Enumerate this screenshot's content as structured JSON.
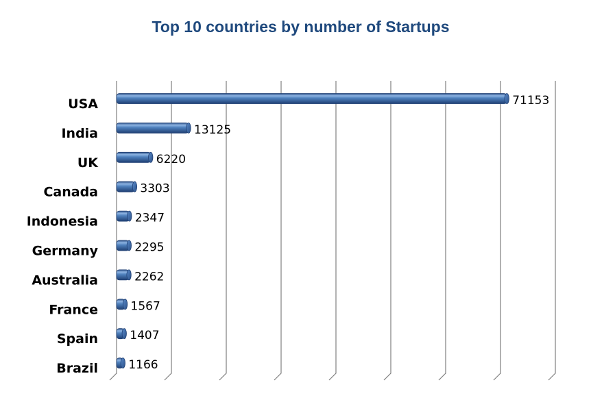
{
  "chart_data": {
    "type": "bar",
    "orientation": "horizontal",
    "style": "3d-cylinder",
    "title": "Top 10 countries by number of Startups",
    "xlabel": "",
    "ylabel": "",
    "categories": [
      "USA",
      "India",
      "UK",
      "Canada",
      "Indonesia",
      "Germany",
      "Australia",
      "France",
      "Spain",
      "Brazil"
    ],
    "values": [
      71153,
      13125,
      6220,
      3303,
      2347,
      2295,
      2262,
      1567,
      1407,
      1166
    ],
    "data_labels": [
      "71153",
      "13125",
      "6220",
      "3303",
      "2347",
      "2295",
      "2262",
      "1567",
      "1407",
      "1166"
    ],
    "xlim": [
      0,
      80000
    ],
    "x_gridlines": [
      0,
      10000,
      20000,
      30000,
      40000,
      50000,
      60000,
      70000,
      80000
    ],
    "grid": true,
    "legend": "none",
    "colors": {
      "title": "#1f497d",
      "bar_light": "#8db3e2",
      "bar_mid": "#4f81bd",
      "bar_dark": "#1f3f73",
      "gridline": "#7f7f7f"
    }
  }
}
